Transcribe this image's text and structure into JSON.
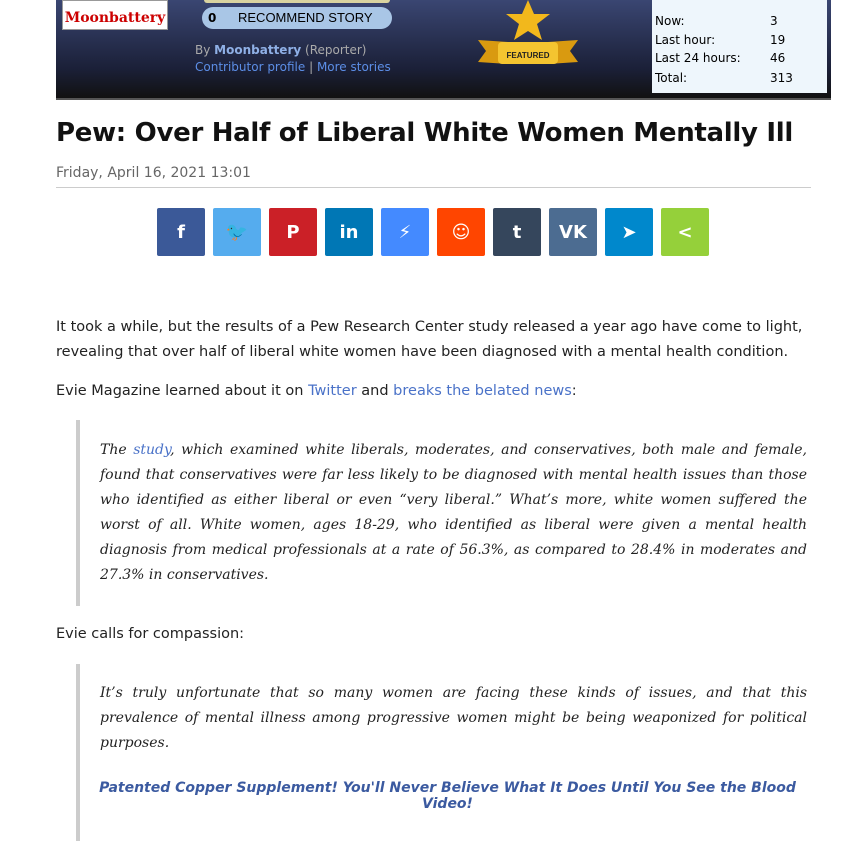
{
  "header": {
    "logo": "Moonbattery",
    "recommend_count": "0",
    "recommend_label": "RECOMMEND STORY",
    "by": "By",
    "author": "Moonbattery",
    "role": "(Reporter)",
    "contributor_profile": "Contributor profile",
    "separator": "|",
    "more_stories": "More stories",
    "featured": "FEATURED",
    "stats": [
      {
        "label": "Now:",
        "value": "3"
      },
      {
        "label": "Last hour:",
        "value": "19"
      },
      {
        "label": "Last 24 hours:",
        "value": "46"
      },
      {
        "label": "Total:",
        "value": "313"
      }
    ]
  },
  "article": {
    "title": "Pew: Over Half of Liberal White Women Mentally Ill",
    "date": "Friday, April 16, 2021 13:01",
    "share": [
      {
        "name": "facebook",
        "glyph": "f",
        "color": "#3b5998"
      },
      {
        "name": "twitter",
        "glyph": "🐦",
        "color": "#55acee"
      },
      {
        "name": "pinterest",
        "glyph": "P",
        "color": "#cb2027"
      },
      {
        "name": "linkedin",
        "glyph": "in",
        "color": "#0077b5"
      },
      {
        "name": "messenger",
        "glyph": "⚡",
        "color": "#448aff"
      },
      {
        "name": "reddit",
        "glyph": "☺",
        "color": "#ff4500"
      },
      {
        "name": "tumblr",
        "glyph": "t",
        "color": "#35465c"
      },
      {
        "name": "vk",
        "glyph": "VK",
        "color": "#4c6c91"
      },
      {
        "name": "telegram",
        "glyph": "➤",
        "color": "#0088cc"
      },
      {
        "name": "share",
        "glyph": "<",
        "color": "#95d03a"
      }
    ],
    "p1": "It took a while, but the results of a Pew Research Center study released a year ago have come to light, revealing that over half of liberal white women have been diagnosed with a mental health condition.",
    "p2_a": "Evie Magazine learned about it on ",
    "p2_link1": "Twitter",
    "p2_b": " and ",
    "p2_link2": "breaks the belated news",
    "p2_c": ":",
    "q1_a": "The ",
    "q1_link": "study",
    "q1_b": ", which examined white liberals, moderates, and conservatives, both male and female, found that conservatives were far less likely to be diagnosed with mental health issues than those who identified as either liberal or even “very liberal.” What’s more, white women suffered the worst of all. White women, ages 18-29, who identified as liberal were given a mental health diagnosis from medical professionals at a rate of 56.3%, as compared to 28.4% in moderates and 27.3% in conservatives.",
    "p3": "Evie calls for compassion:",
    "q2": "It’s truly unfortunate that so many women are facing these kinds of issues, and that this prevalence of mental illness among progressive women might be being weaponized for political purposes.",
    "ad": "Patented Copper Supplement! You'll Never Believe What It Does Until You See the Blood Video!"
  }
}
